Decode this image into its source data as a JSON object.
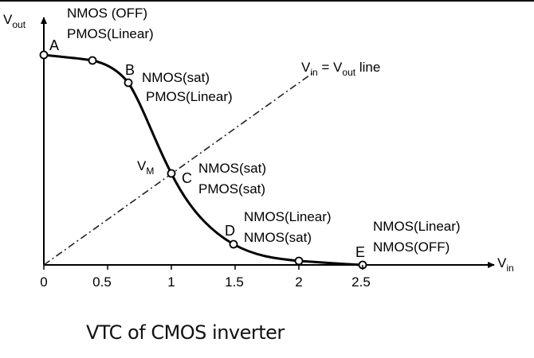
{
  "diagram": {
    "y_axis_label": "V",
    "y_axis_sub": "out",
    "x_axis_label": "V",
    "x_axis_sub": "in",
    "vm_label": "V",
    "vm_sub": "M",
    "line_label_prefix": "V",
    "line_label_sub1": "in",
    "line_label_mid": " = V",
    "line_label_sub2": "out",
    "line_label_suffix": " line",
    "points": [
      {
        "name": "A",
        "vin": 0,
        "vout": 2.5,
        "labels": [
          "NMOS (OFF)",
          "PMOS(Linear)"
        ]
      },
      {
        "name": "B",
        "vin": 0.67,
        "vout": 2.35,
        "labels": [
          "NMOS(sat)",
          "PMOS(Linear)"
        ]
      },
      {
        "name": "C",
        "vin": 1.0,
        "vout": 1.08,
        "labels": [
          "NMOS(sat)",
          "PMOS(sat)"
        ]
      },
      {
        "name": "D",
        "vin": 1.5,
        "vout": 0.23,
        "labels": [
          "NMOS(Linear)",
          "NMOS(sat)"
        ]
      },
      {
        "name": "E",
        "vin": 2.5,
        "vout": 0.0,
        "labels": [
          "NMOS(Linear)",
          "NMOS(OFF)"
        ]
      }
    ],
    "x_ticks": [
      "0",
      "0.5",
      "1",
      "1.5",
      "2",
      "2.5"
    ]
  },
  "caption": "VTC of CMOS inverter"
}
